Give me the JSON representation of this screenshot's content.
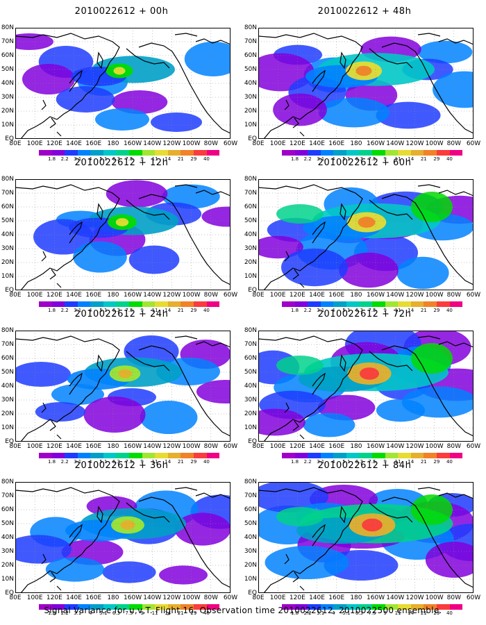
{
  "title_base": "2010022612",
  "panels": [
    {
      "title": "2010022612 + 00h",
      "lead": "00h",
      "intensity": 0.25
    },
    {
      "title": "2010022612 + 48h",
      "lead": "48h",
      "intensity": 0.55
    },
    {
      "title": "2010022612 + 12h",
      "lead": "12h",
      "intensity": 0.32
    },
    {
      "title": "2010022612 + 60h",
      "lead": "60h",
      "intensity": 0.65
    },
    {
      "title": "2010022612 + 24h",
      "lead": "24h",
      "intensity": 0.38
    },
    {
      "title": "2010022612 + 72h",
      "lead": "72h",
      "intensity": 0.8
    },
    {
      "title": "2010022612 + 36h",
      "lead": "36h",
      "intensity": 0.45
    },
    {
      "title": "2010022612 + 84h",
      "lead": "84h",
      "intensity": 0.88
    }
  ],
  "lat_labels": [
    "80N",
    "70N",
    "60N",
    "50N",
    "40N",
    "30N",
    "20N",
    "10N",
    "EQ"
  ],
  "lon_labels": [
    "80E",
    "100E",
    "120E",
    "140E",
    "160E",
    "180",
    "160W",
    "140W",
    "120W",
    "100W",
    "80W",
    "60W"
  ],
  "colorbar": {
    "labels": [
      "1.8",
      "2.2",
      "3.1",
      "4",
      "5.1",
      "6.3",
      "7.5",
      "9",
      "11",
      "14",
      "21",
      "29",
      "40"
    ],
    "colors": [
      "#a000c8",
      "#8200dc",
      "#1e3cff",
      "#0082ff",
      "#00a0c8",
      "#00c8c8",
      "#00d28c",
      "#00dc00",
      "#a0e632",
      "#e6dc32",
      "#e6af2d",
      "#f08228",
      "#fa3c3c",
      "#f00082"
    ]
  },
  "caption": "Signal Variance for u,v,T. Flight 16. Observation time 2010022612. 2010022500 ensemble."
}
